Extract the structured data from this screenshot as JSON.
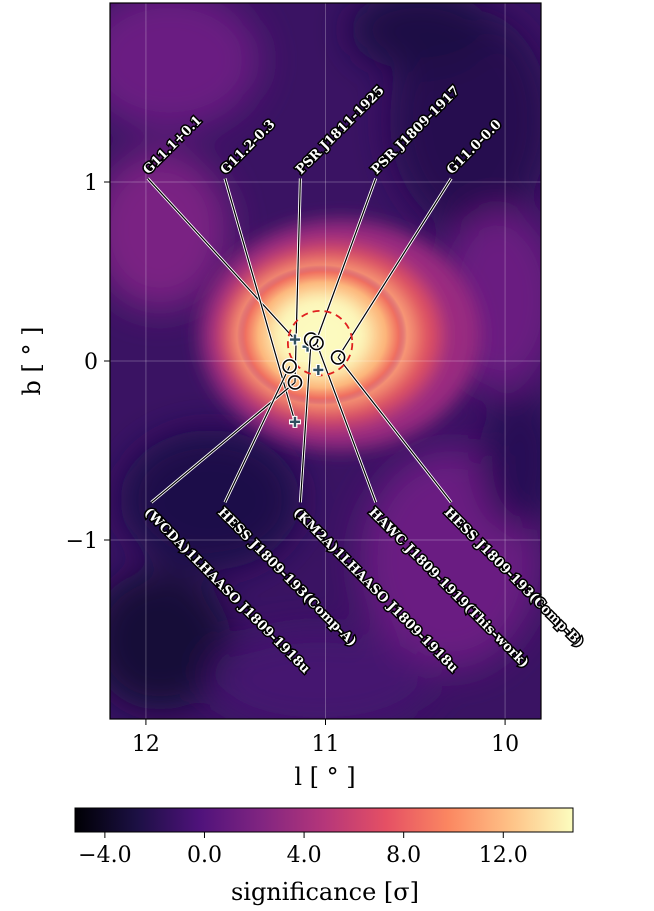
{
  "chart_data": {
    "type": "heatmap",
    "title": "",
    "xlabel": "l [ ° ]",
    "ylabel": "b [ ° ]",
    "xlim": [
      12.2,
      9.8
    ],
    "ylim": [
      -2.0,
      2.0
    ],
    "xticks": [
      {
        "v": 12,
        "label": "12"
      },
      {
        "v": 11,
        "label": "11"
      },
      {
        "v": 10,
        "label": "10"
      }
    ],
    "yticks": [
      {
        "v": 1,
        "label": "1"
      },
      {
        "v": 0,
        "label": "0"
      },
      {
        "v": -1,
        "label": "−1"
      }
    ],
    "grid": true,
    "colorbar": {
      "label": "significance [σ]",
      "range": [
        -5.2,
        14.8
      ],
      "ticks": [
        {
          "v": -4,
          "label": "−4.0"
        },
        {
          "v": 0,
          "label": "0.0"
        },
        {
          "v": 4,
          "label": "4.0"
        },
        {
          "v": 8,
          "label": "8.0"
        },
        {
          "v": 12,
          "label": "12.0"
        }
      ],
      "colormap": "magma",
      "colors": [
        "#000004",
        "#1c1044",
        "#4f127b",
        "#812581",
        "#b5367a",
        "#e55064",
        "#fb8761",
        "#fec287",
        "#fcfdbf"
      ]
    },
    "markers": [
      {
        "id": "g1",
        "type": "plus",
        "l": 11.17,
        "b": 0.12
      },
      {
        "id": "g2",
        "type": "plus",
        "l": 11.17,
        "b": -0.34
      },
      {
        "id": "g3",
        "type": "plus",
        "l": 11.1,
        "b": 0.08
      },
      {
        "id": "g4",
        "type": "plus",
        "l": 11.04,
        "b": -0.05
      },
      {
        "id": "c1",
        "type": "circle",
        "l": 11.08,
        "b": 0.12
      },
      {
        "id": "c2",
        "type": "circle",
        "l": 11.17,
        "b": -0.12
      },
      {
        "id": "c3",
        "type": "circle",
        "l": 11.2,
        "b": -0.03
      },
      {
        "id": "c4",
        "type": "circle",
        "l": 11.05,
        "b": 0.1
      },
      {
        "id": "c5",
        "type": "circle",
        "l": 10.93,
        "b": 0.02
      }
    ],
    "extension_circle": {
      "l": 11.03,
      "b": 0.1,
      "r": 0.18,
      "color": "#e02020"
    },
    "sources": [
      {
        "name": "G11.1+0.1",
        "label_l": 11.99,
        "label_b": 1.02,
        "l": 11.17,
        "b": 0.12
      },
      {
        "name": "G11.2-0.3",
        "label_l": 11.56,
        "label_b": 1.02,
        "l": 11.17,
        "b": -0.34
      },
      {
        "name": "PSR J1811-1925",
        "label_l": 11.14,
        "label_b": 1.02,
        "l": 11.17,
        "b": -0.12
      },
      {
        "name": "PSR J1809-1917",
        "label_l": 10.72,
        "label_b": 1.02,
        "l": 11.06,
        "b": 0.09
      },
      {
        "name": "G11.0-0.0",
        "label_l": 10.3,
        "label_b": 1.02,
        "l": 10.93,
        "b": 0.02
      },
      {
        "name": "(WCDA)1LHAASO J1809-1918u",
        "label_l": 11.97,
        "label_b": -0.79,
        "l": 11.17,
        "b": -0.12
      },
      {
        "name": "HESS J1809-193(Comp-A)",
        "label_l": 11.56,
        "label_b": -0.79,
        "l": 11.2,
        "b": -0.03
      },
      {
        "name": "(KM2A)1LHAASO J1809-1918u",
        "label_l": 11.14,
        "label_b": -0.79,
        "l": 11.08,
        "b": 0.12
      },
      {
        "name": "HAWC J1809-1919(This-work)",
        "label_l": 10.72,
        "label_b": -0.79,
        "l": 11.05,
        "b": 0.1
      },
      {
        "name": "HESS J1809-193(Comp-B)",
        "label_l": 10.3,
        "label_b": -0.79,
        "l": 10.93,
        "b": 0.02
      }
    ]
  }
}
